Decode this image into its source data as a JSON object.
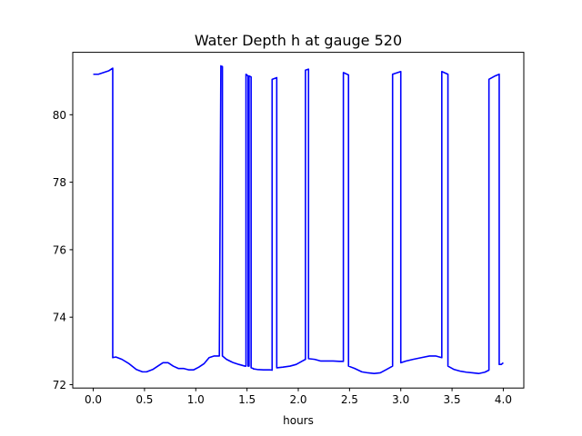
{
  "chart_data": {
    "type": "line",
    "title": "Water Depth h at gauge 520",
    "xlabel": "hours",
    "ylabel": "",
    "xlim": [
      -0.2,
      4.2
    ],
    "ylim": [
      71.9,
      81.85
    ],
    "x_ticks": [
      0.0,
      0.5,
      1.0,
      1.5,
      2.0,
      2.5,
      3.0,
      3.5,
      4.0
    ],
    "x_tick_labels": [
      "0.0",
      "0.5",
      "1.0",
      "1.5",
      "2.0",
      "2.5",
      "3.0",
      "3.5",
      "4.0"
    ],
    "y_ticks": [
      72,
      74,
      76,
      78,
      80
    ],
    "y_tick_labels": [
      "72",
      "74",
      "76",
      "78",
      "80"
    ],
    "grid": false,
    "color": "#0000ff",
    "series": [
      {
        "x": [
          0.0,
          0.05,
          0.1,
          0.15,
          0.19,
          0.19,
          0.22,
          0.28,
          0.35,
          0.42,
          0.48,
          0.52,
          0.58,
          0.63,
          0.68,
          0.73,
          0.78,
          0.83,
          0.88,
          0.93,
          0.98,
          1.03,
          1.08,
          1.13,
          1.18,
          1.23,
          1.245,
          1.245,
          1.26,
          1.26,
          1.3,
          1.36,
          1.42,
          1.48,
          1.49,
          1.49,
          1.51,
          1.51,
          1.52,
          1.52,
          1.54,
          1.54,
          1.56,
          1.56,
          1.6,
          1.66,
          1.72,
          1.745,
          1.745,
          1.79,
          1.79,
          1.85,
          1.92,
          1.98,
          2.04,
          2.07,
          2.07,
          2.1,
          2.1,
          2.16,
          2.22,
          2.28,
          2.34,
          2.4,
          2.44,
          2.44,
          2.49,
          2.49,
          2.55,
          2.62,
          2.68,
          2.74,
          2.8,
          2.86,
          2.92,
          2.92,
          3.0,
          3.0,
          3.05,
          3.12,
          3.2,
          3.28,
          3.34,
          3.4,
          3.4,
          3.46,
          3.46,
          3.52,
          3.58,
          3.64,
          3.7,
          3.76,
          3.82,
          3.86,
          3.86,
          3.92,
          3.96,
          3.96,
          3.98,
          4.0
        ],
        "y": [
          81.2,
          81.2,
          81.25,
          81.3,
          81.38,
          72.8,
          72.82,
          72.75,
          72.62,
          72.45,
          72.38,
          72.38,
          72.45,
          72.55,
          72.65,
          72.65,
          72.55,
          72.48,
          72.48,
          72.44,
          72.44,
          72.52,
          72.62,
          72.8,
          72.85,
          72.85,
          81.45,
          81.43,
          81.43,
          72.85,
          72.75,
          72.66,
          72.6,
          72.55,
          72.55,
          81.2,
          81.15,
          72.55,
          72.55,
          81.15,
          81.12,
          72.5,
          72.48,
          72.47,
          72.45,
          72.44,
          72.44,
          72.43,
          81.05,
          81.1,
          72.5,
          72.52,
          72.55,
          72.6,
          72.7,
          72.75,
          81.32,
          81.35,
          72.77,
          72.75,
          72.7,
          72.7,
          72.7,
          72.69,
          72.69,
          81.25,
          81.18,
          72.55,
          72.48,
          72.38,
          72.35,
          72.33,
          72.35,
          72.45,
          72.55,
          81.2,
          81.28,
          72.65,
          72.7,
          72.75,
          72.8,
          72.85,
          72.85,
          72.8,
          81.28,
          81.2,
          72.55,
          72.45,
          72.4,
          72.37,
          72.35,
          72.33,
          72.37,
          72.43,
          81.05,
          81.15,
          81.2,
          72.6,
          72.6,
          72.65
        ]
      }
    ]
  }
}
